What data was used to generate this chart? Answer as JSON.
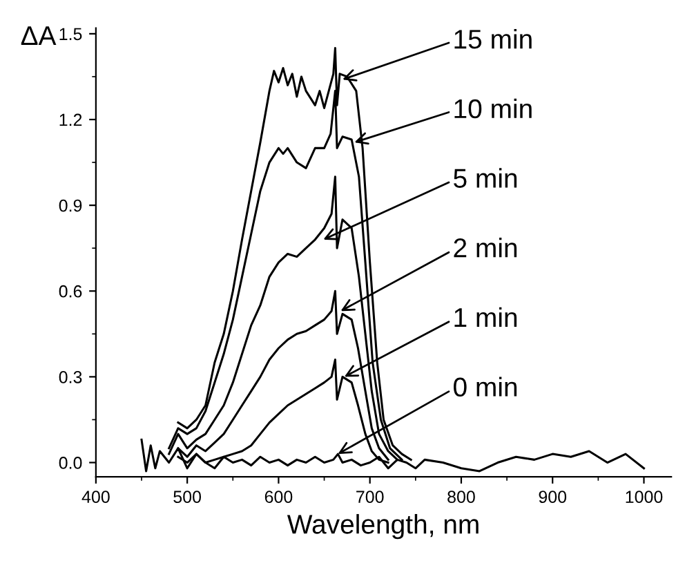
{
  "chart_data": {
    "type": "line",
    "xlabel": "Wavelength, nm",
    "ylabel": "ΔA",
    "xlim": [
      400,
      1030
    ],
    "ylim": [
      -0.05,
      1.52
    ],
    "xticks": [
      400,
      500,
      600,
      700,
      800,
      900,
      1000
    ],
    "yticks": [
      {
        "value": 0,
        "label": "0.0"
      },
      {
        "value": 0.3,
        "label": "0.3"
      },
      {
        "value": 0.6,
        "label": "0.6"
      },
      {
        "value": 0.9,
        "label": "0.9"
      },
      {
        "value": 1.2,
        "label": "1.2"
      },
      {
        "value": 1.5,
        "label": "1.5"
      }
    ],
    "grid": false,
    "legend": false,
    "marker": "none",
    "line_style": "solid",
    "series": [
      {
        "color": "#000000",
        "x": [
          450,
          455,
          460,
          465,
          470,
          480,
          490,
          500,
          510,
          520,
          530,
          540,
          550,
          560,
          570,
          580,
          590,
          600,
          610,
          620,
          630,
          640,
          650,
          660,
          665,
          670,
          680,
          690,
          700,
          710,
          720,
          730,
          740,
          750,
          760,
          780,
          800,
          820,
          840,
          860,
          880,
          900,
          920,
          940,
          960,
          980,
          1000
        ],
        "values": [
          0.08,
          -0.03,
          0.06,
          -0.02,
          0.04,
          0.0,
          0.05,
          -0.02,
          0.03,
          0.0,
          -0.02,
          0.02,
          0.0,
          0.01,
          -0.01,
          0.02,
          0.0,
          0.01,
          -0.01,
          0.01,
          0.0,
          0.02,
          0.0,
          0.01,
          0.03,
          0.0,
          0.01,
          -0.01,
          0.0,
          0.02,
          -0.02,
          0.01,
          0.0,
          -0.02,
          0.01,
          0.0,
          -0.02,
          -0.03,
          0.0,
          0.02,
          0.01,
          0.03,
          0.02,
          0.04,
          0.0,
          0.03,
          -0.02
        ]
      },
      {
        "color": "#000000",
        "x": [
          490,
          500,
          510,
          520,
          530,
          540,
          550,
          560,
          570,
          580,
          590,
          600,
          610,
          620,
          630,
          640,
          650,
          658,
          662,
          664,
          670,
          680,
          687,
          695,
          702,
          710,
          720
        ],
        "values": [
          0.02,
          0.0,
          0.03,
          0.0,
          0.01,
          0.02,
          0.03,
          0.04,
          0.06,
          0.1,
          0.14,
          0.17,
          0.2,
          0.22,
          0.24,
          0.26,
          0.28,
          0.3,
          0.36,
          0.22,
          0.3,
          0.28,
          0.2,
          0.1,
          0.04,
          0.01,
          0.0
        ]
      },
      {
        "color": "#000000",
        "x": [
          490,
          500,
          510,
          520,
          530,
          540,
          550,
          560,
          570,
          580,
          590,
          600,
          610,
          620,
          630,
          640,
          650,
          658,
          662,
          664,
          670,
          680,
          687,
          695,
          702,
          710,
          720
        ],
        "values": [
          0.05,
          0.02,
          0.06,
          0.04,
          0.07,
          0.1,
          0.15,
          0.2,
          0.25,
          0.3,
          0.36,
          0.4,
          0.43,
          0.45,
          0.46,
          0.48,
          0.5,
          0.53,
          0.6,
          0.45,
          0.52,
          0.5,
          0.4,
          0.25,
          0.12,
          0.05,
          0.01
        ]
      },
      {
        "color": "#000000",
        "x": [
          480,
          490,
          500,
          510,
          520,
          530,
          540,
          550,
          560,
          570,
          580,
          590,
          600,
          610,
          620,
          630,
          640,
          650,
          658,
          662,
          664,
          670,
          680,
          688,
          695,
          702,
          710,
          720,
          730
        ],
        "values": [
          0.03,
          0.1,
          0.05,
          0.08,
          0.1,
          0.15,
          0.2,
          0.28,
          0.38,
          0.48,
          0.55,
          0.65,
          0.7,
          0.73,
          0.72,
          0.75,
          0.78,
          0.82,
          0.87,
          1.0,
          0.75,
          0.85,
          0.82,
          0.65,
          0.45,
          0.25,
          0.1,
          0.04,
          0.01
        ]
      },
      {
        "color": "#000000",
        "x": [
          480,
          490,
          500,
          510,
          520,
          530,
          540,
          550,
          560,
          570,
          580,
          590,
          600,
          605,
          610,
          620,
          630,
          640,
          650,
          657,
          662,
          664,
          670,
          680,
          688,
          695,
          703,
          712,
          722,
          735
        ],
        "values": [
          0.05,
          0.12,
          0.1,
          0.12,
          0.18,
          0.28,
          0.38,
          0.5,
          0.65,
          0.8,
          0.95,
          1.05,
          1.1,
          1.08,
          1.1,
          1.05,
          1.03,
          1.1,
          1.1,
          1.15,
          1.3,
          1.1,
          1.14,
          1.13,
          1.0,
          0.7,
          0.35,
          0.15,
          0.05,
          0.01
        ]
      },
      {
        "color": "#000000",
        "x": [
          490,
          500,
          510,
          520,
          530,
          540,
          550,
          560,
          570,
          580,
          590,
          595,
          600,
          605,
          610,
          615,
          620,
          625,
          630,
          640,
          645,
          650,
          655,
          660,
          662,
          664,
          667,
          675,
          685,
          692,
          700,
          708,
          715,
          725,
          735,
          745
        ],
        "values": [
          0.14,
          0.12,
          0.15,
          0.2,
          0.35,
          0.45,
          0.6,
          0.78,
          0.95,
          1.12,
          1.3,
          1.37,
          1.33,
          1.38,
          1.32,
          1.36,
          1.28,
          1.35,
          1.3,
          1.25,
          1.3,
          1.24,
          1.3,
          1.36,
          1.45,
          1.25,
          1.36,
          1.35,
          1.3,
          1.1,
          0.7,
          0.35,
          0.15,
          0.06,
          0.03,
          0.01
        ]
      }
    ],
    "annotations": [
      {
        "text": "15 min",
        "x": 670,
        "y": 1.34
      },
      {
        "text": "10 min",
        "x": 683,
        "y": 1.12
      },
      {
        "text": "5 min",
        "x": 649,
        "y": 0.78
      },
      {
        "text": "2 min",
        "x": 668,
        "y": 0.53
      },
      {
        "text": "1 min",
        "x": 672,
        "y": 0.3
      },
      {
        "text": "0 min",
        "x": 665,
        "y": 0.03
      }
    ]
  }
}
